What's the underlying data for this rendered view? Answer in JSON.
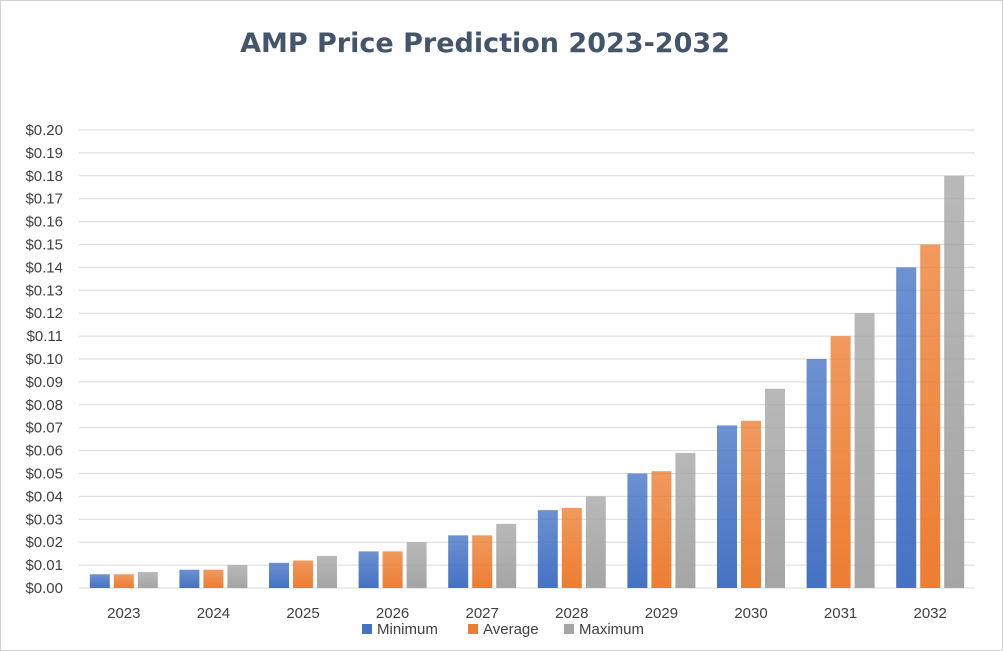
{
  "chart_data": {
    "type": "bar",
    "title": "AMP Price Prediction 2023-2032",
    "xlabel": "",
    "ylabel": "",
    "categories": [
      "2023",
      "2024",
      "2025",
      "2026",
      "2027",
      "2028",
      "2029",
      "2030",
      "2031",
      "2032"
    ],
    "series": [
      {
        "name": "Minimum",
        "color": "#4472c4",
        "values": [
          0.006,
          0.008,
          0.011,
          0.016,
          0.023,
          0.034,
          0.05,
          0.071,
          0.1,
          0.14
        ]
      },
      {
        "name": "Average",
        "color": "#ed7d31",
        "values": [
          0.006,
          0.008,
          0.012,
          0.016,
          0.023,
          0.035,
          0.051,
          0.073,
          0.11,
          0.15
        ]
      },
      {
        "name": "Maximum",
        "color": "#a5a5a5",
        "values": [
          0.007,
          0.01,
          0.014,
          0.02,
          0.028,
          0.04,
          0.059,
          0.087,
          0.12,
          0.18
        ]
      }
    ],
    "ylim": [
      0,
      0.2
    ],
    "ytick_step": 0.01,
    "ytick_prefix": "$",
    "ytick_decimals": 2,
    "grid": true,
    "legend_position": "bottom"
  }
}
